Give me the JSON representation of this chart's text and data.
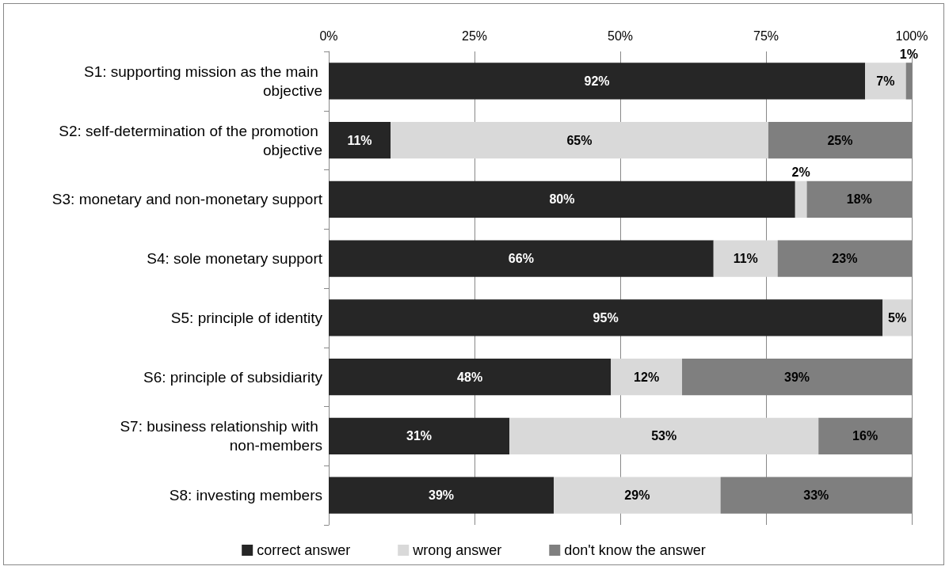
{
  "chart_data": {
    "type": "bar",
    "orientation": "horizontal",
    "stacked": true,
    "categories": [
      "S1: supporting mission as the main objective",
      "S2: self-determination of the promotion objective",
      "S3: monetary and non-monetary support",
      "S4: sole monetary support",
      "S5: principle of identity",
      "S6: principle of subsidiarity",
      "S7: business relationship with non-members",
      "S8: investing members"
    ],
    "series": [
      {
        "name": "correct answer",
        "color": "#262626",
        "values": [
          92,
          10.6,
          80,
          66,
          95,
          48.4,
          31,
          38.6
        ],
        "value_labels": [
          "92%",
          "11%",
          "80%",
          "66%",
          "95%",
          "48%",
          "31%",
          "39%"
        ]
      },
      {
        "name": "wrong answer",
        "color": "#d9d9d9",
        "values": [
          7,
          64.8,
          2,
          11,
          5,
          12.2,
          53,
          28.6
        ],
        "value_labels": [
          "7%",
          "65%",
          "2%",
          "11%",
          "5%",
          "12%",
          "53%",
          "29%"
        ]
      },
      {
        "name": "don't know the answer",
        "color": "#7f7f7f",
        "values": [
          1,
          24.6,
          18,
          23,
          0,
          39.4,
          16,
          32.8
        ],
        "value_labels": [
          "1%",
          "25%",
          "18%",
          "23%",
          null,
          "39%",
          "16%",
          "33%"
        ]
      }
    ],
    "xlim": [
      0,
      100
    ],
    "xticks": [
      {
        "value": 0,
        "label": "0%"
      },
      {
        "value": 25,
        "label": "25%"
      },
      {
        "value": 50,
        "label": "50%"
      },
      {
        "value": 75,
        "label": "75%"
      },
      {
        "value": 100,
        "label": "100%"
      }
    ],
    "grid": "x",
    "legend": "bottom"
  }
}
